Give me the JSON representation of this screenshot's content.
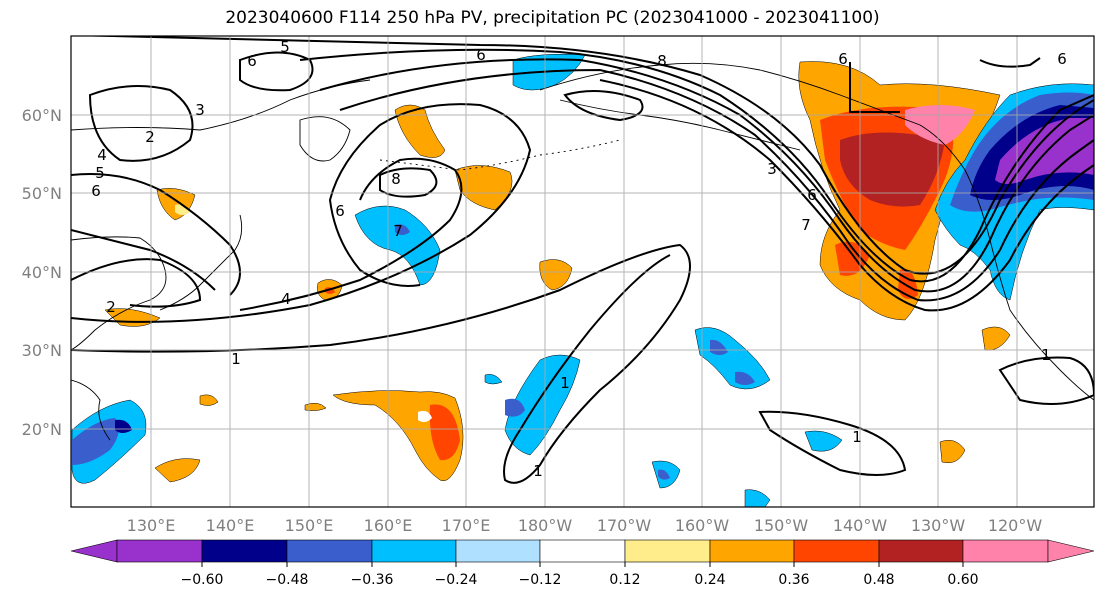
{
  "title": "2023040600 F114 250 hPa PV, precipitation PC (2023041000 - 2023041100)",
  "map": {
    "lat_labels": [
      "60°N",
      "50°N",
      "40°N",
      "30°N",
      "20°N"
    ],
    "lon_labels": [
      "130°E",
      "140°E",
      "150°E",
      "160°E",
      "170°E",
      "180°W",
      "170°W",
      "160°W",
      "150°W",
      "140°W",
      "130°W",
      "120°W"
    ],
    "contour_labels": [
      "5",
      "6",
      "6",
      "8",
      "3",
      "6",
      "6",
      "2",
      "4",
      "5",
      "6",
      "8",
      "6",
      "7",
      "3",
      "7",
      "6",
      "4",
      "2",
      "1",
      "1",
      "1",
      "1",
      "1"
    ],
    "field_colors": {
      "purple": "#9932cc",
      "navy": "#00008b",
      "royal": "#3a5fcd",
      "blue": "#00bfff",
      "lightblue": "#b0e0ff",
      "yellow": "#ffec8b",
      "orange": "#ffa500",
      "redorange": "#ff4500",
      "firebrick": "#b22222",
      "pink": "#ff82ab"
    },
    "contour_color": "#000000",
    "grid": true
  },
  "colorbar": {
    "tick_labels": [
      "−0.60",
      "−0.48",
      "−0.36",
      "−0.24",
      "−0.12",
      "0.12",
      "0.24",
      "0.36",
      "0.48",
      "0.60"
    ],
    "colors": [
      "#9932cc",
      "#00008b",
      "#3a5fcd",
      "#00bfff",
      "#b0e0ff",
      "#ffffff",
      "#ffec8b",
      "#ffa500",
      "#ff4500",
      "#b22222",
      "#ff82ab"
    ],
    "extend": "both"
  }
}
